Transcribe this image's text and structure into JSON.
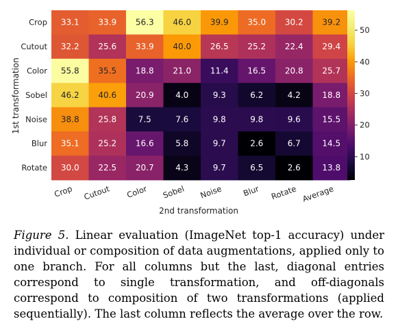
{
  "chart_data": {
    "type": "heatmap",
    "xlabel": "2nd transformation",
    "ylabel": "1st transformation",
    "x_categories": [
      "Crop",
      "Cutout",
      "Color",
      "Sobel",
      "Noise",
      "Blur",
      "Rotate",
      "Average"
    ],
    "y_categories": [
      "Crop",
      "Cutout",
      "Color",
      "Sobel",
      "Noise",
      "Blur",
      "Rotate"
    ],
    "values": [
      [
        33.1,
        33.9,
        56.3,
        46.0,
        39.9,
        35.0,
        30.2,
        39.2
      ],
      [
        32.2,
        25.6,
        33.9,
        40.0,
        26.5,
        25.2,
        22.4,
        29.4
      ],
      [
        55.8,
        35.5,
        18.8,
        21.0,
        11.4,
        16.5,
        20.8,
        25.7
      ],
      [
        46.2,
        40.6,
        20.9,
        4.0,
        9.3,
        6.2,
        4.2,
        18.8
      ],
      [
        38.8,
        25.8,
        7.5,
        7.6,
        9.8,
        9.8,
        9.6,
        15.5
      ],
      [
        35.1,
        25.2,
        16.6,
        5.8,
        9.7,
        2.6,
        6.7,
        14.5
      ],
      [
        30.0,
        22.5,
        20.7,
        4.3,
        9.7,
        6.5,
        2.6,
        13.8
      ]
    ],
    "colormap": "inferno",
    "vmin": 2.6,
    "vmax": 56.3,
    "colorbar_ticks": [
      10,
      20,
      30,
      40,
      50
    ]
  },
  "caption": {
    "label": "Figure 5.",
    "text": "Linear evaluation (ImageNet top-1 accuracy) under individual or composition of data augmentations, applied only to one branch. For all columns but the last, diagonal entries correspond to single transformation, and off-diagonals correspond to composition of two transformations (applied sequentially). The last column reflects the average over the row."
  }
}
